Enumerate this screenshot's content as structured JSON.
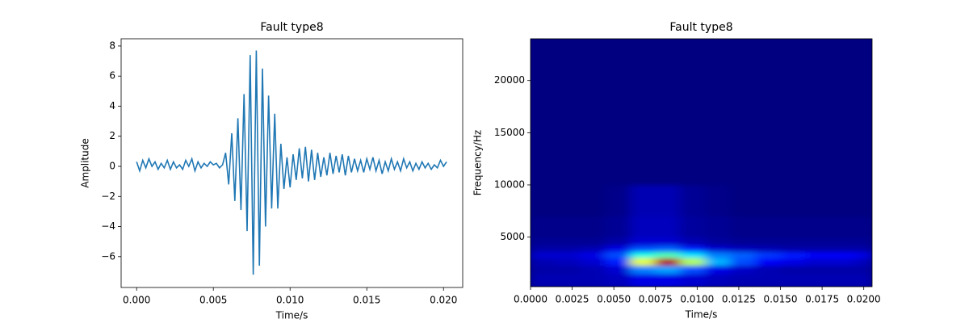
{
  "chart_data": [
    {
      "type": "line",
      "title": "Fault type8",
      "xlabel": "Time/s",
      "ylabel": "Amplitude",
      "color": "#1f77b4",
      "x": [
        0,
        0.0002,
        0.0004,
        0.0006,
        0.0008,
        0.001,
        0.0012,
        0.0014,
        0.0016,
        0.0018,
        0.002,
        0.0022,
        0.0024,
        0.0026,
        0.0028,
        0.003,
        0.0032,
        0.0034,
        0.0036,
        0.0038,
        0.004,
        0.0042,
        0.0044,
        0.0046,
        0.0048,
        0.005,
        0.0052,
        0.0054,
        0.0056,
        0.0058,
        0.006,
        0.0062,
        0.0064,
        0.0066,
        0.0068,
        0.007,
        0.0072,
        0.0074,
        0.0076,
        0.0078,
        0.008,
        0.0082,
        0.0084,
        0.0086,
        0.0088,
        0.009,
        0.0092,
        0.0094,
        0.0096,
        0.0098,
        0.01,
        0.0102,
        0.0104,
        0.0106,
        0.0108,
        0.011,
        0.0112,
        0.0114,
        0.0116,
        0.0118,
        0.012,
        0.0122,
        0.0124,
        0.0126,
        0.0128,
        0.013,
        0.0132,
        0.0134,
        0.0136,
        0.0138,
        0.014,
        0.0142,
        0.0144,
        0.0146,
        0.0148,
        0.015,
        0.0152,
        0.0154,
        0.0156,
        0.0158,
        0.016,
        0.0162,
        0.0164,
        0.0166,
        0.0168,
        0.017,
        0.0172,
        0.0174,
        0.0176,
        0.0178,
        0.018,
        0.0182,
        0.0184,
        0.0186,
        0.0188,
        0.019,
        0.0192,
        0.0194,
        0.0196,
        0.0198,
        0.02,
        0.0202
      ],
      "values": [
        0.3,
        -0.3,
        0.4,
        -0.1,
        0.5,
        0.0,
        0.3,
        -0.2,
        0.2,
        -0.1,
        0.4,
        -0.2,
        0.3,
        -0.1,
        0.1,
        -0.2,
        0.4,
        0.0,
        0.5,
        -0.3,
        0.3,
        -0.1,
        0.2,
        0.0,
        0.3,
        0.1,
        0.2,
        -0.1,
        0.1,
        0.9,
        -1.2,
        2.2,
        -2.3,
        3.2,
        -2.9,
        4.8,
        -4.3,
        7.4,
        -7.2,
        7.7,
        -6.6,
        6.5,
        -4.0,
        4.7,
        -2.8,
        3.5,
        -2.8,
        1.5,
        -1.5,
        0.6,
        -1.4,
        0.8,
        -0.9,
        1.2,
        -0.8,
        1.3,
        -1.0,
        1.1,
        -0.9,
        0.9,
        -0.7,
        0.6,
        -0.6,
        0.9,
        -0.5,
        0.7,
        -0.4,
        0.8,
        -0.6,
        0.7,
        -0.4,
        0.5,
        -0.3,
        0.4,
        -0.4,
        0.5,
        -0.2,
        0.6,
        -0.3,
        0.4,
        -0.5,
        0.3,
        -0.3,
        0.5,
        -0.2,
        0.3,
        -0.3,
        0.5,
        -0.1,
        0.3,
        -0.3,
        0.2,
        -0.2,
        0.3,
        -0.1,
        0.2,
        -0.2,
        0.1,
        -0.1,
        0.4,
        0.0,
        0.3
      ],
      "xlim": [
        -0.00101,
        0.02125
      ],
      "ylim": [
        -8.05,
        8.48
      ],
      "xticks": [
        {
          "value": 0,
          "label": "0.000"
        },
        {
          "value": 0.005,
          "label": "0.005"
        },
        {
          "value": 0.01,
          "label": "0.010"
        },
        {
          "value": 0.015,
          "label": "0.015"
        },
        {
          "value": 0.02,
          "label": "0.020"
        }
      ],
      "yticks": [
        {
          "value": -6,
          "label": "−6"
        },
        {
          "value": -4,
          "label": "−4"
        },
        {
          "value": -2,
          "label": "−2"
        },
        0,
        2,
        4,
        6,
        8
      ],
      "grid": false
    },
    {
      "type": "heatmap",
      "title": "Fault type8",
      "xlabel": "Time/s",
      "ylabel": "Frequency/Hz",
      "colormap": "jet",
      "x_edges": [
        0,
        0.0015,
        0.003,
        0.0045,
        0.006,
        0.0075,
        0.009,
        0.0105,
        0.012,
        0.0135,
        0.015,
        0.0165,
        0.018,
        0.0195,
        0.0205
      ],
      "y_edges": [
        250,
        1500,
        2300,
        3000,
        3600,
        4200,
        5000,
        7000,
        10000,
        24000
      ],
      "z": [
        [
          0.05,
          0.05,
          0.05,
          0.06,
          0.1,
          0.1,
          0.08,
          0.06,
          0.05,
          0.05,
          0.05,
          0.05,
          0.05,
          0.05
        ],
        [
          0.04,
          0.04,
          0.05,
          0.08,
          0.25,
          0.28,
          0.2,
          0.1,
          0.07,
          0.05,
          0.04,
          0.04,
          0.04,
          0.04
        ],
        [
          0.05,
          0.06,
          0.08,
          0.15,
          0.6,
          0.95,
          0.55,
          0.3,
          0.2,
          0.12,
          0.1,
          0.08,
          0.08,
          0.06
        ],
        [
          0.08,
          0.08,
          0.1,
          0.2,
          0.4,
          0.45,
          0.35,
          0.25,
          0.22,
          0.18,
          0.15,
          0.12,
          0.12,
          0.1
        ],
        [
          0.04,
          0.04,
          0.05,
          0.1,
          0.2,
          0.22,
          0.15,
          0.08,
          0.06,
          0.05,
          0.04,
          0.04,
          0.04,
          0.04
        ],
        [
          0.02,
          0.02,
          0.02,
          0.04,
          0.08,
          0.08,
          0.05,
          0.03,
          0.02,
          0.02,
          0.02,
          0.02,
          0.02,
          0.02
        ],
        [
          0.01,
          0.01,
          0.01,
          0.02,
          0.06,
          0.06,
          0.03,
          0.02,
          0.01,
          0.01,
          0.01,
          0.01,
          0.01,
          0.01
        ],
        [
          0,
          0,
          0,
          0.01,
          0.05,
          0.05,
          0.02,
          0.01,
          0,
          0,
          0,
          0,
          0,
          0
        ],
        [
          0,
          0,
          0,
          0,
          0,
          0,
          0,
          0,
          0,
          0,
          0,
          0,
          0,
          0
        ]
      ],
      "xlim": [
        0,
        0.0205
      ],
      "ylim": [
        250,
        24000
      ],
      "xticks": [
        {
          "value": 0,
          "label": "0.0000"
        },
        {
          "value": 0.0025,
          "label": "0.0025"
        },
        {
          "value": 0.005,
          "label": "0.0050"
        },
        {
          "value": 0.0075,
          "label": "0.0075"
        },
        {
          "value": 0.01,
          "label": "0.0100"
        },
        {
          "value": 0.0125,
          "label": "0.0125"
        },
        {
          "value": 0.015,
          "label": "0.0150"
        },
        {
          "value": 0.0175,
          "label": "0.0175"
        },
        {
          "value": 0.02,
          "label": "0.0200"
        }
      ],
      "yticks": [
        5000,
        10000,
        15000,
        20000
      ],
      "grid": false
    }
  ]
}
